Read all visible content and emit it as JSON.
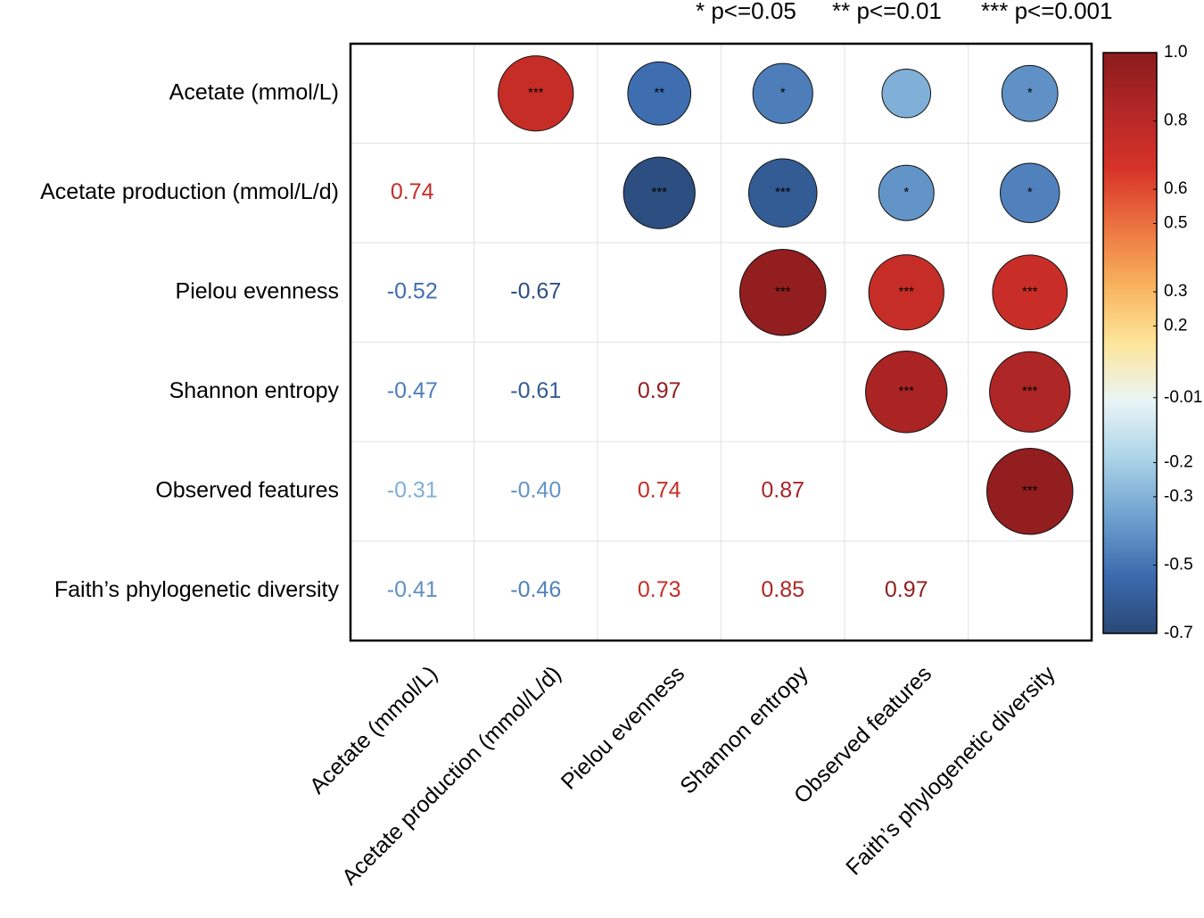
{
  "chart_data": {
    "type": "corrplot",
    "significance_legend": [
      "* p<=0.05",
      "** p<=0.01",
      "*** p<=0.001"
    ],
    "variables": [
      "Acetate (mmol/L)",
      "Acetate production (mmol/L/d)",
      "Pielou evenness",
      "Shannon entropy",
      "Observed features",
      "Faith’s phylogenetic diversity"
    ],
    "values": [
      [],
      [
        0.74
      ],
      [
        -0.52,
        -0.67
      ],
      [
        -0.47,
        -0.61,
        0.97
      ],
      [
        -0.31,
        -0.4,
        0.74,
        0.87
      ],
      [
        -0.41,
        -0.46,
        0.73,
        0.85,
        0.97
      ]
    ],
    "value_labels": [
      [],
      [
        "0.74"
      ],
      [
        "-0.52",
        "-0.67"
      ],
      [
        "-0.47",
        "-0.61",
        "0.97"
      ],
      [
        "-0.31",
        "-0.40",
        "0.74",
        "0.87"
      ],
      [
        "-0.41",
        "-0.46",
        "0.73",
        "0.85",
        "0.97"
      ]
    ],
    "stars": [
      [
        null,
        "***",
        "**",
        "*",
        null,
        "*"
      ],
      [
        null,
        null,
        "***",
        "***",
        "*",
        "*"
      ],
      [
        null,
        null,
        null,
        "***",
        "***",
        "***"
      ],
      [
        null,
        null,
        null,
        null,
        "***",
        "***"
      ],
      [
        null,
        null,
        null,
        null,
        null,
        "***"
      ],
      [
        null,
        null,
        null,
        null,
        null,
        null
      ]
    ],
    "colorscale": [
      "#2a4876",
      "#3b6bae",
      "#6ea1d0",
      "#abd3e7",
      "#e9f5f6",
      "#fde59a",
      "#f8b25c",
      "#ec7440",
      "#d73328",
      "#b32726",
      "#8b1c1d"
    ],
    "ylim": [
      -0.7,
      1
    ],
    "yticks": [
      {
        "value": 1,
        "label": "1.0"
      },
      0.8,
      0.6,
      0.5,
      0.3,
      0.2,
      -0.01,
      -0.2,
      -0.3,
      -0.5,
      -0.7
    ],
    "grid": true
  }
}
